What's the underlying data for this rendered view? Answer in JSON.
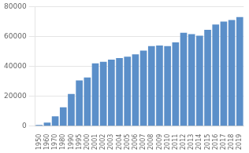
{
  "chart_data": {
    "type": "bar",
    "categories": [
      "1950",
      "1960",
      "1970",
      "1980",
      "1990",
      "1995",
      "2000",
      "2001",
      "2002",
      "2003",
      "2004",
      "2005",
      "2006",
      "2007",
      "2008",
      "2009",
      "2010",
      "2011",
      "2012",
      "2013",
      "2014",
      "2015",
      "2016",
      "2017",
      "2018",
      "2019"
    ],
    "values": [
      700,
      2300,
      6500,
      12500,
      21500,
      30500,
      32500,
      42000,
      43000,
      44500,
      45500,
      46500,
      48000,
      50500,
      53500,
      54000,
      53500,
      56000,
      62500,
      61500,
      60500,
      64500,
      68000,
      70000,
      71000,
      73000
    ],
    "color": "#5b8fc9",
    "ylim": [
      0,
      80000
    ],
    "yticks": [
      0,
      20000,
      40000,
      60000,
      80000
    ],
    "grid": true
  }
}
